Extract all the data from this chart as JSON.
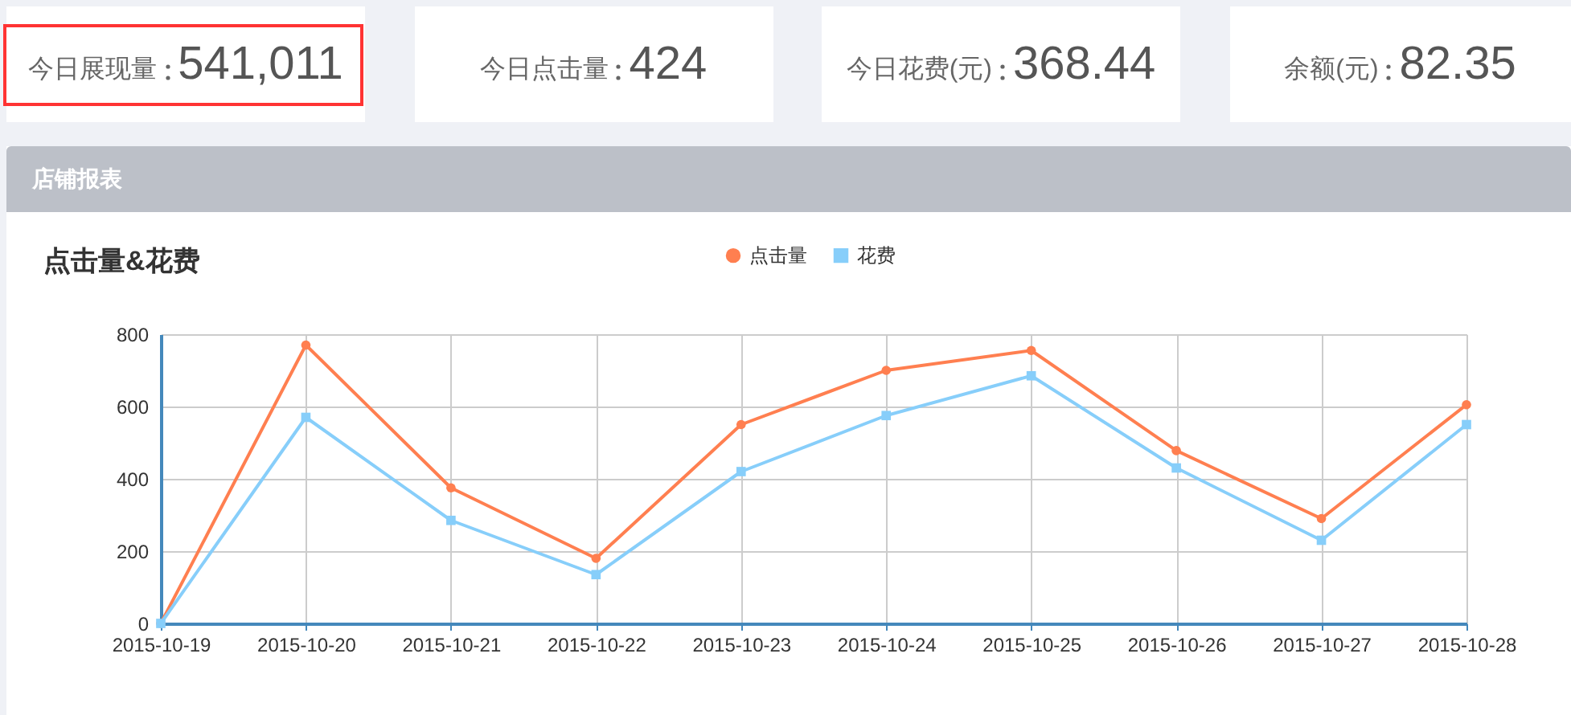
{
  "chart_data": [
    {
      "type": "other",
      "categories": [
        "今日展现量",
        "今日点击量",
        "今日花费(元)",
        "余额(元)"
      ],
      "value_labels": [
        "541,011",
        "424",
        "368.44",
        "82.35"
      ]
    },
    {
      "type": "line",
      "title": "点击量&花费",
      "annotations": [
        "店铺报表"
      ],
      "categories": [
        "2015-10-19",
        "2015-10-20",
        "2015-10-21",
        "2015-10-22",
        "2015-10-23",
        "2015-10-24",
        "2015-10-25",
        "2015-10-26",
        "2015-10-27",
        "2015-10-28"
      ],
      "series": [
        {
          "name": "点击量",
          "color": "#ff7f50",
          "marker": "circle",
          "values": [
            0,
            770,
            375,
            180,
            550,
            700,
            755,
            478,
            290,
            605
          ]
        },
        {
          "name": "花费",
          "color": "#87cefa",
          "marker": "square",
          "values": [
            0,
            570,
            285,
            135,
            420,
            575,
            685,
            430,
            230,
            550
          ]
        }
      ],
      "ylim": [
        0,
        800
      ],
      "yticks": [
        0,
        200,
        400,
        600,
        800
      ],
      "grid": true,
      "legend": "top"
    }
  ]
}
